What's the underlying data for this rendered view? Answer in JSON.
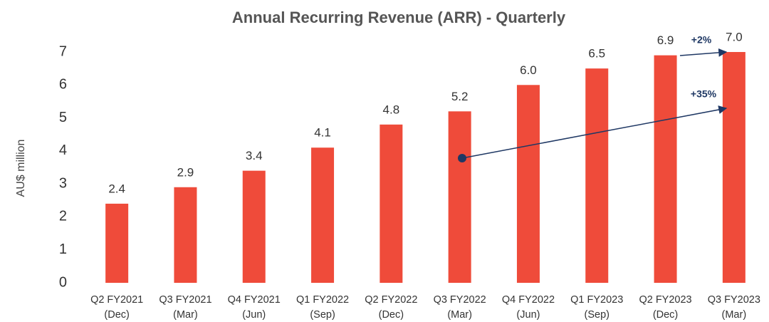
{
  "chart_data": {
    "type": "bar",
    "title": "Annual Recurring Revenue (ARR) - Quarterly",
    "y_label": "AU$ million",
    "categories": [
      [
        "Q2 FY2021",
        "(Dec)"
      ],
      [
        "Q3 FY2021",
        "(Mar)"
      ],
      [
        "Q4 FY2021",
        "(Jun)"
      ],
      [
        "Q1 FY2022",
        "(Sep)"
      ],
      [
        "Q2 FY2022",
        "(Dec)"
      ],
      [
        "Q3 FY2022",
        "(Mar)"
      ],
      [
        "Q4 FY2022",
        "(Jun)"
      ],
      [
        "Q1 FY2023",
        "(Sep)"
      ],
      [
        "Q2 FY2023",
        "(Dec)"
      ],
      [
        "Q3 FY2023",
        "(Mar)"
      ]
    ],
    "values": [
      2.4,
      2.9,
      3.4,
      4.1,
      4.8,
      5.2,
      6.0,
      6.5,
      6.9,
      7.0
    ],
    "value_labels": [
      "2.4",
      "2.9",
      "3.4",
      "4.1",
      "4.8",
      "5.2",
      "6.0",
      "6.5",
      "6.9",
      "7.0"
    ],
    "color": "#ef4b3a",
    "ylim": [
      0,
      7
    ],
    "yticks": [
      0,
      1,
      2,
      3,
      4,
      5,
      6,
      7
    ],
    "grid": false,
    "annotations": [
      {
        "text": "+2%"
      },
      {
        "text": "+35%"
      }
    ]
  }
}
